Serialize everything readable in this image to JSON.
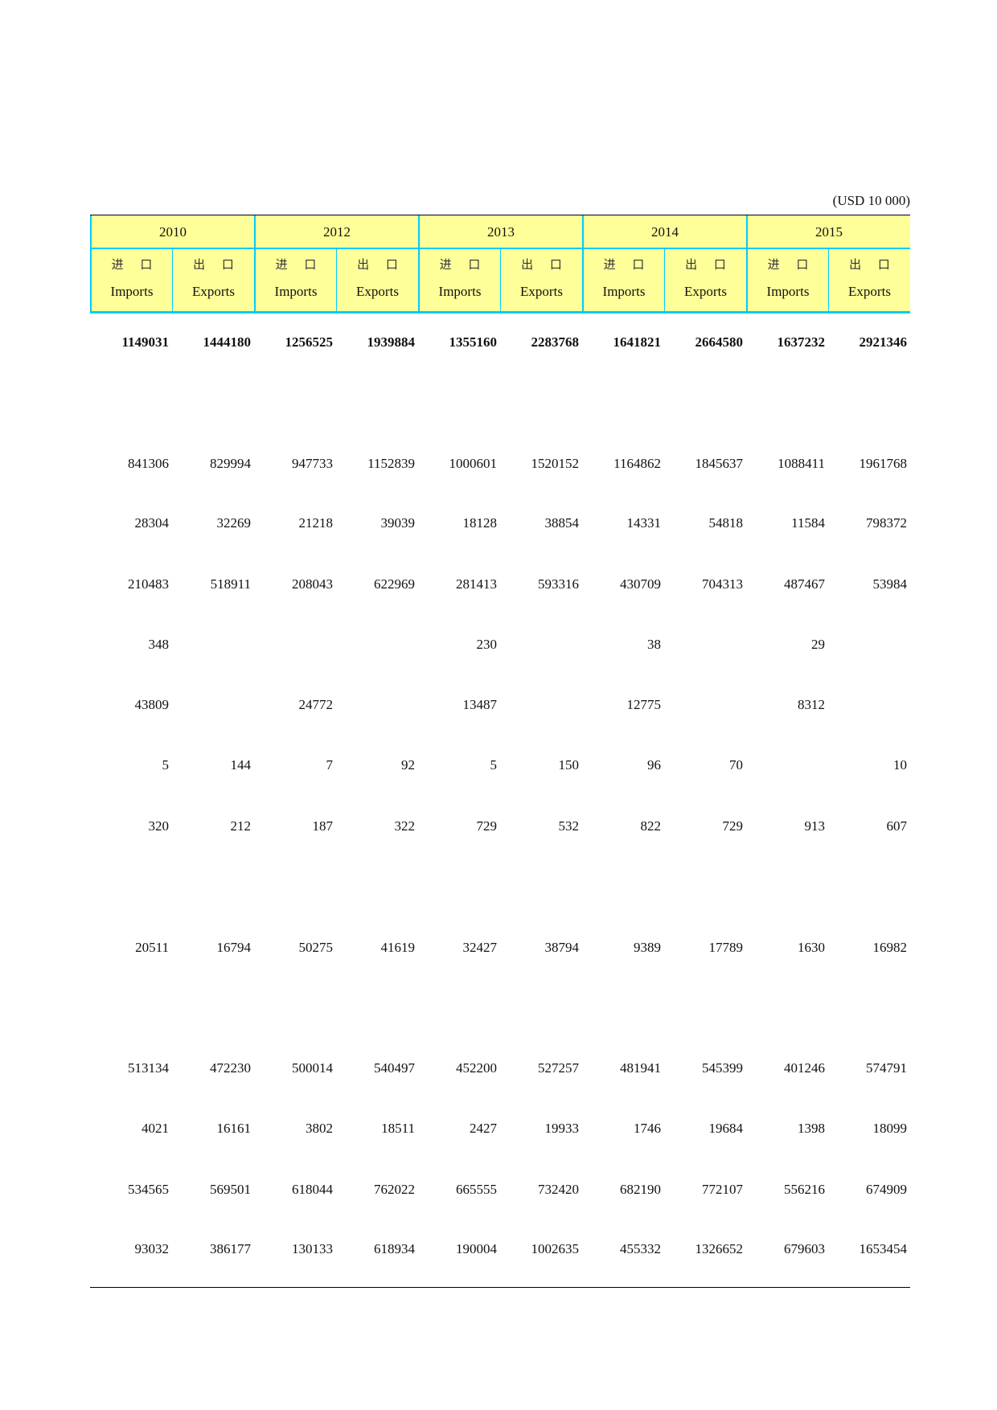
{
  "unit": "(USD 10 000)",
  "years": [
    "2010",
    "2012",
    "2013",
    "2014",
    "2015"
  ],
  "sub_headers": [
    {
      "zh": "进 口",
      "en": "Imports"
    },
    {
      "zh": "出 口",
      "en": "Exports"
    }
  ],
  "rows": [
    {
      "bold": true,
      "values": [
        "1149031",
        "1444180",
        "1256525",
        "1939884",
        "1355160",
        "2283768",
        "1641821",
        "2664580",
        "1637232",
        "2921346"
      ]
    },
    {
      "values": [
        "841306",
        "829994",
        "947733",
        "1152839",
        "1000601",
        "1520152",
        "1164862",
        "1845637",
        "1088411",
        "1961768"
      ]
    },
    {
      "values": [
        "28304",
        "32269",
        "21218",
        "39039",
        "18128",
        "38854",
        "14331",
        "54818",
        "11584",
        "798372"
      ]
    },
    {
      "values": [
        "210483",
        "518911",
        "208043",
        "622969",
        "281413",
        "593316",
        "430709",
        "704313",
        "487467",
        "53984"
      ]
    },
    {
      "values": [
        "348",
        "",
        "",
        "",
        "230",
        "",
        "38",
        "",
        "29",
        ""
      ]
    },
    {
      "values": [
        "43809",
        "",
        "24772",
        "",
        "13487",
        "",
        "12775",
        "",
        "8312",
        ""
      ]
    },
    {
      "values": [
        "5",
        "144",
        "7",
        "92",
        "5",
        "150",
        "96",
        "70",
        "",
        "10"
      ]
    },
    {
      "values": [
        "320",
        "212",
        "187",
        "322",
        "729",
        "532",
        "822",
        "729",
        "913",
        "607"
      ]
    },
    {
      "values": [
        "20511",
        "16794",
        "50275",
        "41619",
        "32427",
        "38794",
        "9389",
        "17789",
        "1630",
        "16982"
      ]
    },
    {
      "values": [
        "513134",
        "472230",
        "500014",
        "540497",
        "452200",
        "527257",
        "481941",
        "545399",
        "401246",
        "574791"
      ]
    },
    {
      "values": [
        "4021",
        "16161",
        "3802",
        "18511",
        "2427",
        "19933",
        "1746",
        "19684",
        "1398",
        "18099"
      ]
    },
    {
      "values": [
        "534565",
        "569501",
        "618044",
        "762022",
        "665555",
        "732420",
        "682190",
        "772107",
        "556216",
        "674909"
      ]
    },
    {
      "values": [
        "93032",
        "386177",
        "130133",
        "618934",
        "190004",
        "1002635",
        "455332",
        "1326652",
        "679603",
        "1653454"
      ]
    }
  ],
  "colors": {
    "header_bg": "#ffff99",
    "header_border": "#00ccff"
  }
}
